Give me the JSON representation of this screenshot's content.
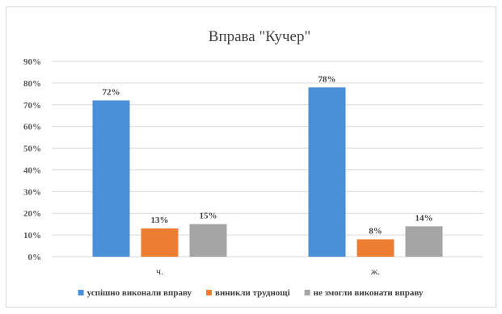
{
  "chart_data": {
    "type": "bar",
    "title": "Вправа \"Кучер\"",
    "categories": [
      "ч.",
      "ж."
    ],
    "series": [
      {
        "name": "успішно виконали вправу",
        "values": [
          72,
          78
        ],
        "labels": [
          "72%",
          "78%"
        ],
        "color": "#4a90d9"
      },
      {
        "name": "виникли труднощі",
        "values": [
          13,
          8
        ],
        "labels": [
          "13%",
          "8%"
        ],
        "color": "#ed7d31"
      },
      {
        "name": "не змогли виконати вправу",
        "values": [
          15,
          14
        ],
        "labels": [
          "15%",
          "14%"
        ],
        "color": "#a5a5a5"
      }
    ],
    "ylim": [
      0,
      90
    ],
    "yticks": [
      "0%",
      "10%",
      "20%",
      "30%",
      "40%",
      "50%",
      "60%",
      "70%",
      "80%",
      "90%"
    ],
    "ytick_values": [
      0,
      10,
      20,
      30,
      40,
      50,
      60,
      70,
      80,
      90
    ],
    "grid": true,
    "legend_position": "bottom",
    "gridline_color": "#d9d9d9"
  }
}
